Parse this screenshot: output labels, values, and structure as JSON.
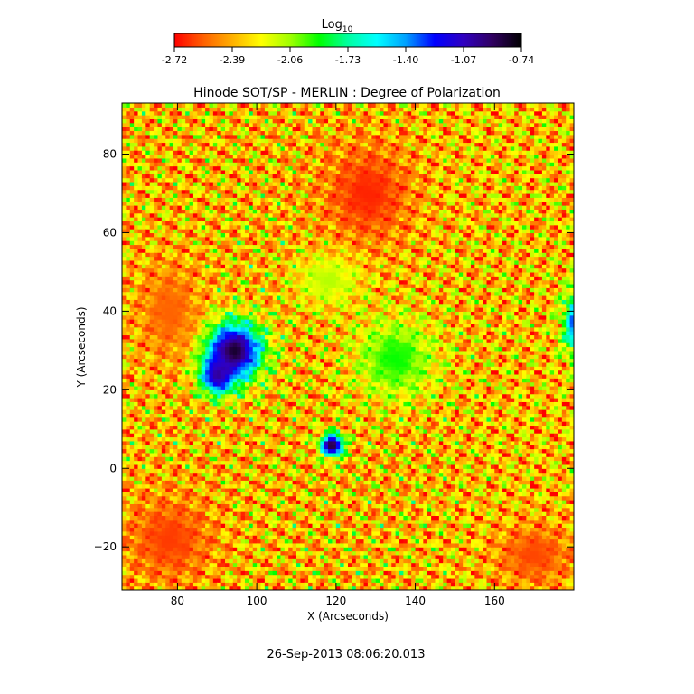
{
  "chart_data": {
    "type": "heatmap",
    "title": "Hinode SOT/SP - MERLIN : Degree of Polarization",
    "xlabel": "X (Arcseconds)",
    "ylabel": "Y (Arcseconds)",
    "xlim": [
      66,
      180
    ],
    "ylim": [
      -31,
      93
    ],
    "x_ticks": [
      80,
      100,
      120,
      140,
      160
    ],
    "y_ticks": [
      -20,
      0,
      20,
      40,
      60,
      80
    ],
    "colorbar": {
      "label_main": "Log",
      "label_sub": "10",
      "range": [
        -2.72,
        -0.74
      ],
      "ticks": [
        "-2.72",
        "-2.39",
        "-2.06",
        "-1.73",
        "-1.40",
        "-1.07",
        "-0.74"
      ],
      "colors": [
        "#ff0000",
        "#ff6000",
        "#ffb000",
        "#ffff00",
        "#a0ff00",
        "#00ff00",
        "#00ffa0",
        "#00ffff",
        "#00a0ff",
        "#0000ff",
        "#3000c0",
        "#300060",
        "#000000"
      ]
    },
    "regions": [
      {
        "x": 94,
        "y": 30,
        "rx": 9,
        "ry": 9,
        "value": -0.78
      },
      {
        "x": 90,
        "y": 24,
        "rx": 5,
        "ry": 6,
        "value": -0.95
      },
      {
        "x": 119,
        "y": 6,
        "rx": 3.5,
        "ry": 3.5,
        "value": -0.8
      },
      {
        "x": 182,
        "y": 37,
        "rx": 5,
        "ry": 10,
        "value": -1.0
      },
      {
        "x": 128,
        "y": 70,
        "rx": 14,
        "ry": 16,
        "value": -2.66
      },
      {
        "x": 78,
        "y": -18,
        "rx": 14,
        "ry": 14,
        "value": -2.62
      },
      {
        "x": 170,
        "y": -22,
        "rx": 12,
        "ry": 10,
        "value": -2.6
      },
      {
        "x": 78,
        "y": 40,
        "rx": 10,
        "ry": 16,
        "value": -2.55
      },
      {
        "x": 135,
        "y": 28,
        "rx": 12,
        "ry": 12,
        "value": -1.9
      },
      {
        "x": 118,
        "y": 48,
        "rx": 10,
        "ry": 8,
        "value": -2.1
      }
    ],
    "grid": false
  },
  "footer": {
    "timestamp": "26-Sep-2013 08:06:20.013"
  }
}
